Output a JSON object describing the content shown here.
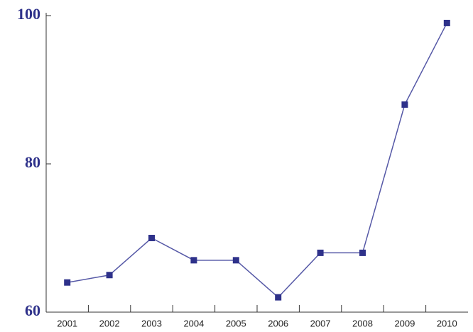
{
  "chart_data": {
    "type": "line",
    "categories": [
      "2001",
      "2002",
      "2003",
      "2004",
      "2005",
      "2006",
      "2007",
      "2008",
      "2009",
      "2010"
    ],
    "series": [
      {
        "color": "#2e318a",
        "values": [
          64,
          65,
          70,
          67,
          67,
          62,
          68,
          68,
          88,
          99
        ]
      }
    ],
    "ylim": [
      60,
      100
    ],
    "yticks": [
      60,
      80,
      100
    ]
  }
}
